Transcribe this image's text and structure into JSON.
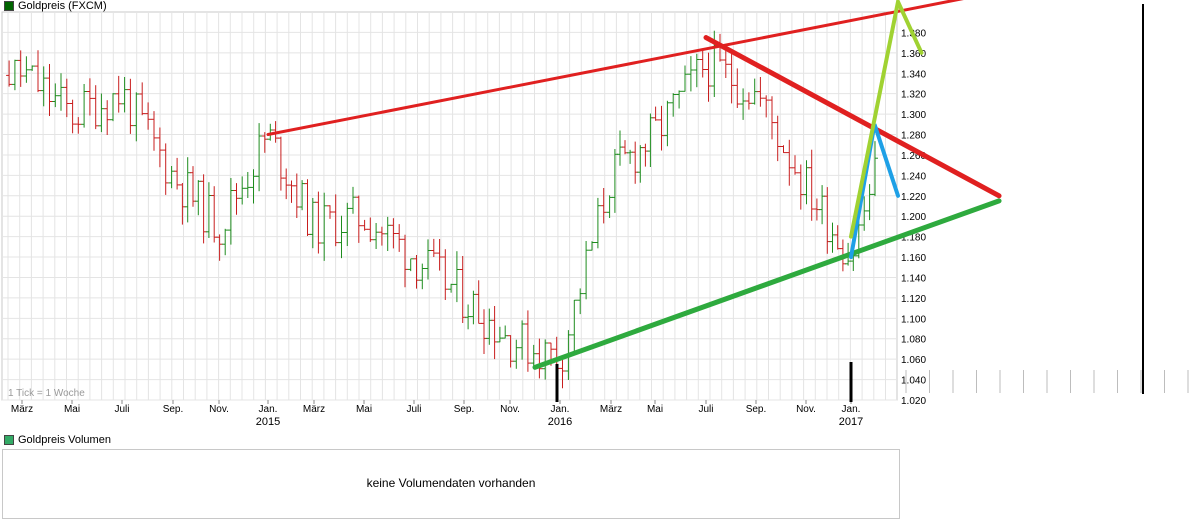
{
  "chart_data": {
    "type": "bar",
    "title": "Goldpreis (FXCM)",
    "note": "1 Tick = 1 Woche",
    "ylim": [
      1.02,
      1.4
    ],
    "y_ticks": [
      "1.020",
      "1.040",
      "1.060",
      "1.080",
      "1.100",
      "1.120",
      "1.140",
      "1.160",
      "1.180",
      "1.200",
      "1.220",
      "1.240",
      "1.260",
      "1.280",
      "1.300",
      "1.320",
      "1.340",
      "1.360",
      "1.380"
    ],
    "x_months": [
      "März",
      "Mai",
      "Juli",
      "Sep.",
      "Nov.",
      "Jan.",
      "März",
      "Mai",
      "Juli",
      "Sep.",
      "Nov.",
      "Jan.",
      "März",
      "Mai",
      "Juli",
      "Sep.",
      "Nov.",
      "Jan."
    ],
    "x_years": [
      "2015",
      "2016",
      "2017"
    ],
    "series": [
      {
        "kind": "weekly-ohlc",
        "close_points": [
          [
            "März 2014",
            1.34
          ],
          [
            "Mai 2014",
            1.3
          ],
          [
            "Juli 2014",
            1.32
          ],
          [
            "Sep. 2014",
            1.24
          ],
          [
            "Nov. 2014",
            1.19
          ],
          [
            "Jan. 2015",
            1.28
          ],
          [
            "März 2015",
            1.19
          ],
          [
            "Mai 2015",
            1.2
          ],
          [
            "Juli 2015",
            1.16
          ],
          [
            "Sep. 2015",
            1.12
          ],
          [
            "Nov. 2015",
            1.08
          ],
          [
            "Jan. 2016",
            1.06
          ],
          [
            "März 2016",
            1.24
          ],
          [
            "Mai 2016",
            1.28
          ],
          [
            "Juli 2016",
            1.35
          ],
          [
            "Sep. 2016",
            1.32
          ],
          [
            "Nov. 2016",
            1.23
          ],
          [
            "Jan. 2017",
            1.16
          ],
          [
            "Feb. 2017",
            1.24
          ]
        ],
        "up_color": "#1e8c1e",
        "down_color": "#c81e1e"
      }
    ],
    "annotations": [
      {
        "name": "resistance-line-upper",
        "color": "#e02020",
        "from": [
          "Jan. 2015",
          1.28
        ],
        "to": [
          "2017+",
          1.42
        ]
      },
      {
        "name": "resistance-line-falling",
        "color": "#e02020",
        "from": [
          "Juli 2016",
          1.375
        ],
        "to": [
          "2017+",
          1.22
        ]
      },
      {
        "name": "support-line",
        "color": "#2eaa3e",
        "from": [
          "Dez. 2015",
          1.052
        ],
        "to": [
          "2017+",
          1.215
        ]
      },
      {
        "name": "arrow-blue",
        "color": "#1ea0e6",
        "points": [
          [
            "Jan. 2017",
            1.16
          ],
          [
            "Feb. 2017",
            1.29
          ],
          [
            "März 2017",
            1.22
          ]
        ]
      },
      {
        "name": "arrow-lime",
        "color": "#a0d232",
        "points": [
          [
            "Jan. 2017",
            1.18
          ],
          [
            "März 2017",
            1.41
          ],
          [
            "Apr. 2017",
            1.36
          ]
        ]
      }
    ],
    "grid": true
  },
  "volume_panel": {
    "title": "Goldpreis Volumen",
    "message": "keine Volumendaten vorhanden"
  },
  "colors": {
    "grid": "#e4e4e4",
    "axis": "#c8c8c8",
    "legend_price": "#006400",
    "legend_volume": "#33aa66"
  }
}
